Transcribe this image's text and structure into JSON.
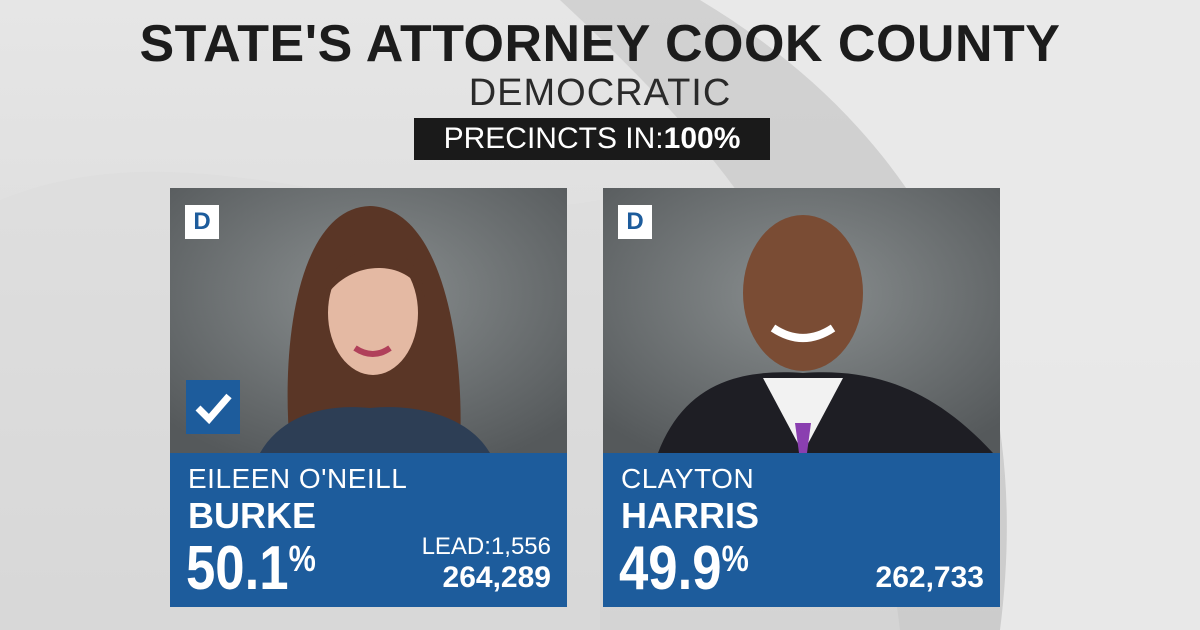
{
  "header": {
    "title": "STATE'S ATTORNEY COOK COUNTY",
    "subtitle": "DEMOCRATIC",
    "precincts_label": "PRECINCTS IN:",
    "precincts_value": "100%"
  },
  "candidates": [
    {
      "party": "D",
      "first_name": "EILEEN O'NEILL",
      "last_name": "BURKE",
      "percent": "50.1",
      "percent_sign": "%",
      "lead_label": "LEAD:",
      "lead": "1,556",
      "votes": "264,289"
    },
    {
      "party": "D",
      "first_name": "CLAYTON",
      "last_name": "HARRIS",
      "percent": "49.9",
      "percent_sign": "%",
      "votes": "262,733"
    }
  ]
}
